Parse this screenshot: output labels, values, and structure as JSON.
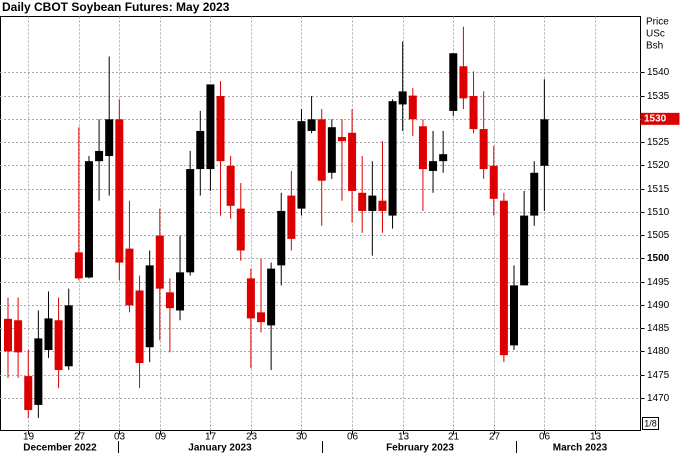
{
  "chart_data": {
    "type": "candlestick",
    "title": "Daily CBOT Soybean Futures: May 2023",
    "y_axis_title": [
      "Price",
      "USc",
      "Bsh"
    ],
    "categories": [
      null,
      null,
      "19",
      null,
      null,
      null,
      null,
      "27",
      null,
      null,
      null,
      "03",
      null,
      null,
      null,
      "09",
      null,
      null,
      null,
      null,
      "17",
      null,
      null,
      null,
      "23",
      null,
      null,
      null,
      null,
      "30",
      null,
      null,
      null,
      null,
      "06",
      null,
      null,
      null,
      null,
      "13",
      null,
      null,
      null,
      null,
      "21",
      null,
      null,
      null,
      "27",
      null,
      null,
      null,
      null,
      "06",
      null,
      null,
      null,
      null,
      "13",
      null,
      null,
      null,
      null
    ],
    "months": [
      "December 2022",
      "January 2023",
      "February 2023",
      "March 2023"
    ],
    "up_color": "#000000",
    "down_color": "#dd0000",
    "series": {
      "open": [
        1487,
        1486.7,
        1474.7,
        1468.5,
        1480.3,
        1486.7,
        1476.8,
        1501.3,
        1495.9,
        1520.9,
        1522,
        1529.9,
        1502.1,
        1493.1,
        1480.9,
        1504.9,
        1492.7,
        1488.8,
        1497,
        1519.2,
        1519.2,
        1534.9,
        1519.9,
        1510.7,
        1495.7,
        1488.4,
        1485.6,
        1498.5,
        1513.5,
        1510.7,
        1527.4,
        1529.9,
        1518.4,
        1526.1,
        1527,
        1514.1,
        1510.2,
        1512.4,
        1509.2,
        1533.1,
        1535,
        1528.4,
        1518.8,
        1520.9,
        1531.7,
        1541.3,
        1534.9,
        1527.8,
        1519.9,
        1512.4,
        1481.3,
        1494.2,
        1509.2,
        1519.9,
        null,
        null,
        null,
        null,
        null,
        null,
        null,
        null,
        null
      ],
      "high": [
        1491.6,
        1491.6,
        1480.3,
        1488.8,
        1492.9,
        1491.6,
        1493.5,
        1528.2,
        1522,
        1529.9,
        1543.4,
        1534.2,
        1512.4,
        1496.3,
        1501.7,
        1510.7,
        1495.7,
        1504.9,
        1523.1,
        1531.7,
        1537.4,
        1538.1,
        1522,
        1516.2,
        1497.8,
        1499.9,
        1499.1,
        1514.1,
        1518.8,
        1532.1,
        1534.9,
        1532.1,
        1529.9,
        1529.9,
        1532.1,
        1522,
        1520.9,
        1525.2,
        1534.2,
        1546.6,
        1536.6,
        1529.9,
        1527.4,
        1527.4,
        1544.1,
        1549.8,
        1540.2,
        1535.9,
        1524.2,
        1514.1,
        1498.5,
        1514.5,
        1520.9,
        1538.5,
        null,
        null,
        null,
        null,
        null,
        null,
        null,
        null,
        null
      ],
      "low": [
        1474.3,
        1474.3,
        1465.7,
        1465.7,
        1478.6,
        1472.1,
        1476,
        1495.3,
        1495.7,
        1512.4,
        1513.5,
        1495.3,
        1488.4,
        1472.1,
        1477.7,
        1482.4,
        1479.8,
        1486.7,
        1496.3,
        1513.5,
        1514.5,
        1509.2,
        1508.5,
        1499.5,
        1476.4,
        1484.1,
        1476,
        1494.2,
        1501.7,
        1509.2,
        1526.9,
        1507,
        1517.1,
        1512.4,
        1507.7,
        1505.5,
        1500.6,
        1505.5,
        1506.4,
        1527.4,
        1526.3,
        1510.2,
        1514.1,
        1518.4,
        1530.6,
        1532.1,
        1526.9,
        1517.1,
        1509.2,
        1477.7,
        1480.3,
        1494.2,
        1507,
        1510.2,
        null,
        null,
        null,
        null,
        null,
        null,
        null,
        null,
        null
      ],
      "close": [
        1480,
        1479.8,
        1467.4,
        1482.8,
        1487.1,
        1476,
        1489.9,
        1495.7,
        1520.9,
        1523.1,
        1529.9,
        1499.1,
        1489.9,
        1477.5,
        1498.5,
        1493.5,
        1489.3,
        1497,
        1519.2,
        1527.4,
        1537.4,
        1520.9,
        1511.3,
        1501.7,
        1487.1,
        1486.3,
        1497.8,
        1510.2,
        1504.2,
        1529.5,
        1529.9,
        1516.7,
        1528.2,
        1525.2,
        1514.5,
        1510.2,
        1513.5,
        1510.2,
        1533.8,
        1535.9,
        1529.9,
        1519.2,
        1520.9,
        1522.4,
        1544.1,
        1534.4,
        1527.8,
        1519.2,
        1512.8,
        1479.2,
        1494.2,
        1509.2,
        1518.4,
        1529.9,
        null,
        null,
        null,
        null,
        null,
        null,
        null,
        null,
        null
      ]
    },
    "last_price": 1530,
    "ylim": [
      1463,
      1552
    ],
    "yticks": [
      1470,
      1475,
      1480,
      1485,
      1490,
      1495,
      1500,
      1505,
      1510,
      1515,
      1520,
      1525,
      1530,
      1535,
      1540
    ],
    "emphasized_ytick": 1500,
    "grid": true,
    "footnote": "1/8"
  }
}
